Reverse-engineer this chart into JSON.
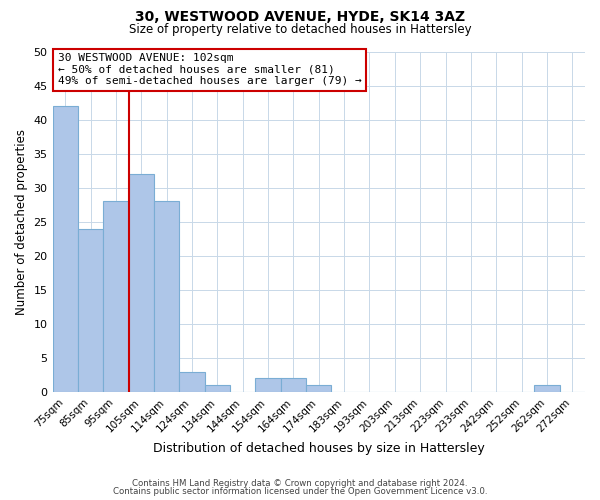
{
  "title": "30, WESTWOOD AVENUE, HYDE, SK14 3AZ",
  "subtitle": "Size of property relative to detached houses in Hattersley",
  "xlabel": "Distribution of detached houses by size in Hattersley",
  "ylabel": "Number of detached properties",
  "bar_labels": [
    "75sqm",
    "85sqm",
    "95sqm",
    "105sqm",
    "114sqm",
    "124sqm",
    "134sqm",
    "144sqm",
    "154sqm",
    "164sqm",
    "174sqm",
    "183sqm",
    "193sqm",
    "203sqm",
    "213sqm",
    "223sqm",
    "233sqm",
    "242sqm",
    "252sqm",
    "262sqm",
    "272sqm"
  ],
  "bar_heights": [
    42,
    24,
    28,
    32,
    28,
    3,
    1,
    0,
    2,
    2,
    1,
    0,
    0,
    0,
    0,
    0,
    0,
    0,
    0,
    1,
    0
  ],
  "bar_color": "#aec6e8",
  "bar_edge_color": "#7aadd4",
  "ylim": [
    0,
    50
  ],
  "yticks": [
    0,
    5,
    10,
    15,
    20,
    25,
    30,
    35,
    40,
    45,
    50
  ],
  "property_line_color": "#cc0000",
  "annotation_title": "30 WESTWOOD AVENUE: 102sqm",
  "annotation_line1": "← 50% of detached houses are smaller (81)",
  "annotation_line2": "49% of semi-detached houses are larger (79) →",
  "annotation_box_color": "#ffffff",
  "annotation_box_edge": "#cc0000",
  "footer1": "Contains HM Land Registry data © Crown copyright and database right 2024.",
  "footer2": "Contains public sector information licensed under the Open Government Licence v3.0.",
  "bg_color": "#ffffff",
  "grid_color": "#c8d8e8"
}
